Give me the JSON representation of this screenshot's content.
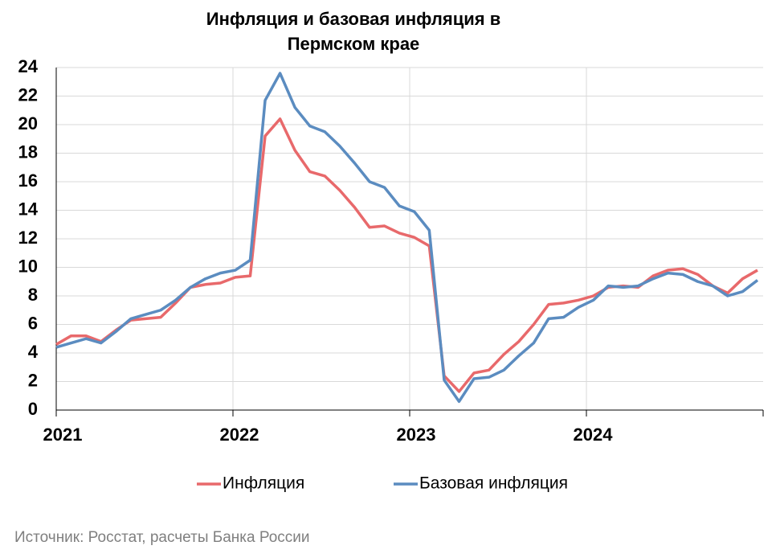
{
  "chart_data": {
    "type": "line",
    "title": "Инфляция и базовая инфляция в",
    "title_line2": "Пермском крае",
    "source": "Источник: Росстат, расчеты Банка России",
    "categories": [
      "2021",
      null,
      null,
      null,
      null,
      null,
      null,
      null,
      null,
      null,
      null,
      null,
      "2022",
      null,
      null,
      null,
      null,
      null,
      null,
      null,
      null,
      null,
      null,
      null,
      "2023",
      null,
      null,
      null,
      null,
      null,
      null,
      null,
      null,
      null,
      null,
      null,
      "2024",
      null,
      null,
      null,
      null,
      null,
      null,
      null,
      null,
      null,
      null,
      null
    ],
    "series": [
      {
        "name": "Инфляция",
        "color": "#e8696b",
        "values": [
          4.6,
          5.2,
          5.2,
          4.8,
          5.6,
          6.3,
          6.4,
          6.5,
          7.5,
          8.6,
          8.8,
          8.9,
          9.3,
          9.4,
          19.2,
          20.4,
          18.2,
          16.7,
          16.4,
          15.4,
          14.2,
          12.8,
          12.9,
          12.4,
          12.1,
          11.5,
          2.4,
          1.3,
          2.6,
          2.8,
          3.9,
          4.8,
          6.0,
          7.4,
          7.5,
          7.7,
          8.0,
          8.6,
          8.7,
          8.6,
          9.4,
          9.8,
          9.9,
          9.5,
          8.7,
          8.2,
          9.2,
          9.8
        ]
      },
      {
        "name": "Базовая инфляция",
        "color": "#5b8cc0",
        "values": [
          4.4,
          4.7,
          5.0,
          4.7,
          5.5,
          6.4,
          6.7,
          7.0,
          7.7,
          8.6,
          9.2,
          9.6,
          9.8,
          10.5,
          21.7,
          23.6,
          21.2,
          19.9,
          19.5,
          18.5,
          17.3,
          16.0,
          15.6,
          14.3,
          13.9,
          12.6,
          2.1,
          0.6,
          2.2,
          2.3,
          2.8,
          3.8,
          4.7,
          6.4,
          6.5,
          7.2,
          7.7,
          8.7,
          8.6,
          8.7,
          9.2,
          9.6,
          9.5,
          9.0,
          8.7,
          8.0,
          8.3,
          9.1
        ]
      }
    ],
    "ylim": [
      0,
      24
    ],
    "yticks": [
      0,
      2,
      4,
      6,
      8,
      10,
      12,
      14,
      16,
      18,
      20,
      22,
      24
    ],
    "grid": true,
    "legend": "bottom"
  }
}
